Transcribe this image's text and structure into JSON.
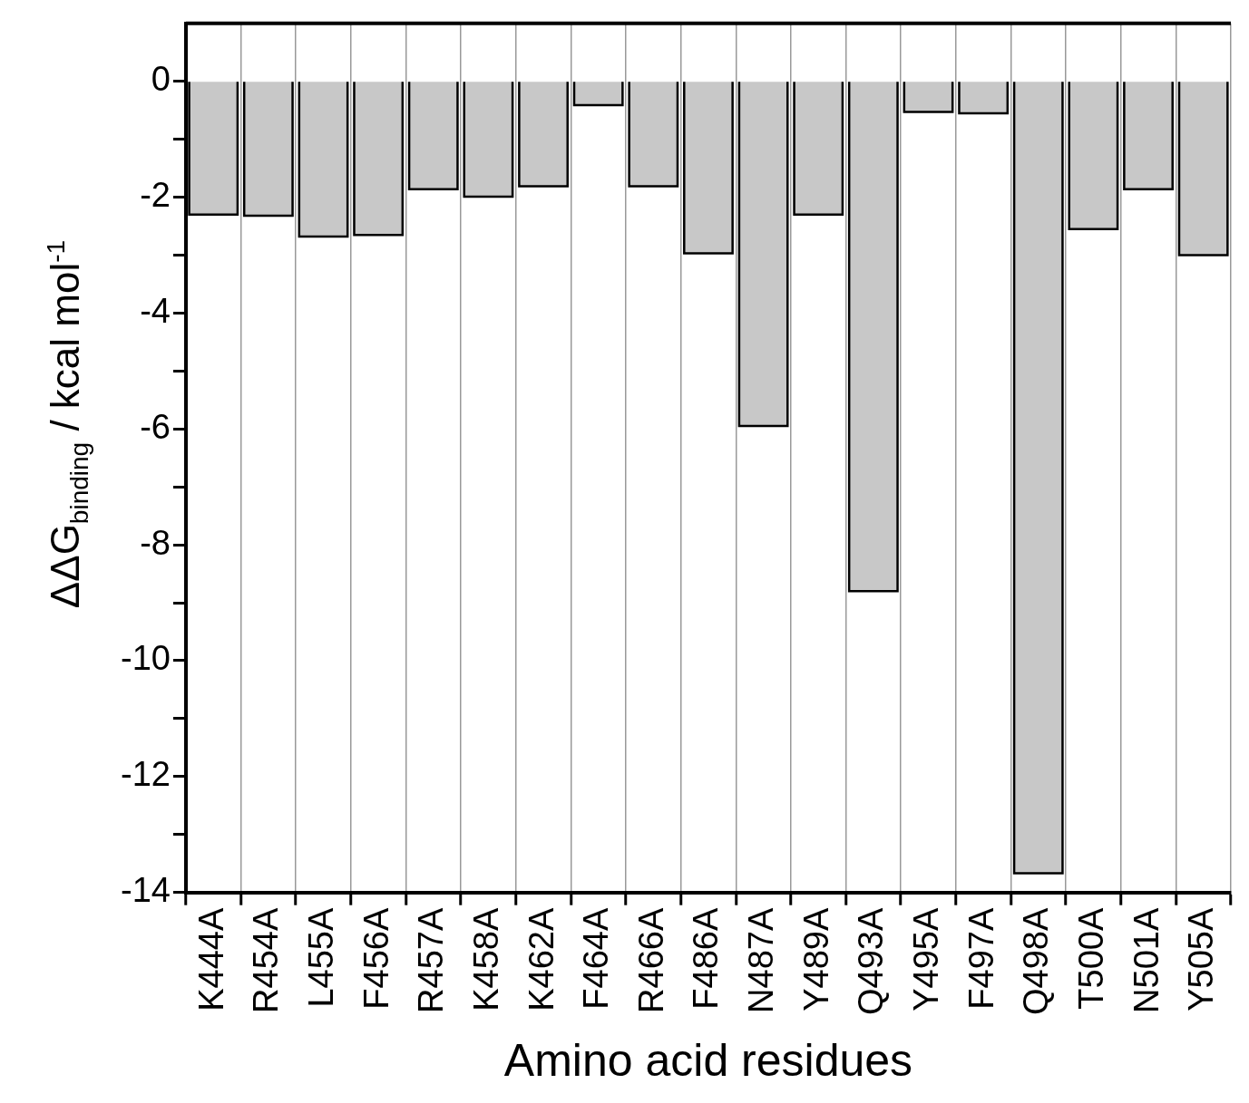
{
  "chart_data": {
    "type": "bar",
    "xlabel": "Amino acid residues",
    "ylabel": "ΔΔG$_{binding}$ / kcal mol$^{-1}$",
    "categories": [
      "K444A",
      "R454A",
      "L455A",
      "F456A",
      "R457A",
      "K458A",
      "K462A",
      "F464A",
      "R466A",
      "F486A",
      "N487A",
      "Y489A",
      "Q493A",
      "Y495A",
      "F497A",
      "Q498A",
      "T500A",
      "N501A",
      "Y505A"
    ],
    "values": [
      -2.3,
      -2.32,
      -2.68,
      -2.65,
      -1.86,
      -1.99,
      -1.81,
      -0.41,
      -1.81,
      -2.97,
      -5.95,
      -2.3,
      -8.8,
      -0.53,
      -0.55,
      -13.67,
      -2.55,
      -1.86,
      -3.0
    ],
    "color": "#c8c8c8",
    "ylim": [
      -14,
      1
    ],
    "yticks": [
      -14,
      {
        "value": -13,
        "label": null
      },
      -12,
      {
        "value": -11,
        "label": null
      },
      -10,
      {
        "value": -9,
        "label": null
      },
      -8,
      {
        "value": -7,
        "label": null
      },
      -6,
      {
        "value": -5,
        "label": null
      },
      -4,
      {
        "value": -3,
        "label": null
      },
      -2,
      {
        "value": -1,
        "label": null
      },
      0
    ],
    "grid": "x",
    "legend": false
  }
}
